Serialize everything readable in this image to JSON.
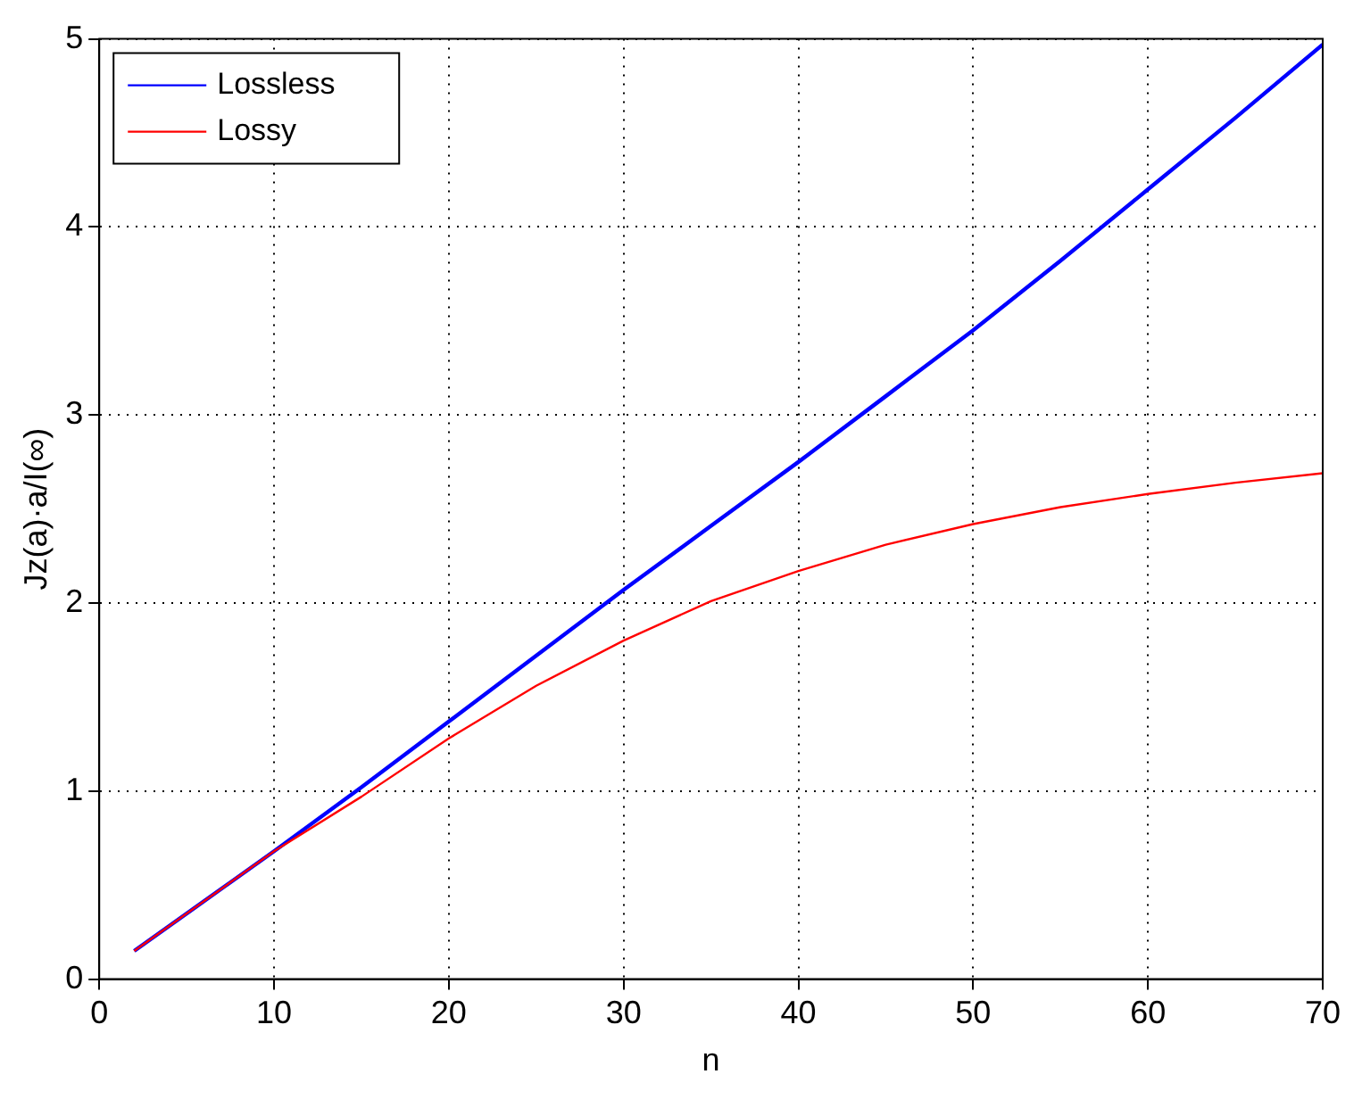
{
  "chart_data": {
    "type": "line",
    "xlabel": "n",
    "ylabel": "Jz(a)·a/I(∞)",
    "xlim": [
      0,
      70
    ],
    "xticks": [
      0,
      10,
      20,
      30,
      40,
      50,
      60,
      70
    ],
    "ylim": [
      0,
      5
    ],
    "yticks": [
      0,
      1,
      2,
      3,
      4,
      5
    ],
    "grid": true,
    "legend": "top left",
    "line_style": "solid",
    "marker": "none",
    "series": [
      {
        "name": "Lossless",
        "color": "#0000ff",
        "x": [
          2,
          10,
          15,
          20,
          25,
          30,
          35,
          40,
          45,
          50,
          55,
          60,
          65,
          70
        ],
        "values": [
          0.15,
          0.68,
          1.02,
          1.37,
          1.72,
          2.07,
          2.41,
          2.75,
          3.1,
          3.45,
          3.82,
          4.2,
          4.58,
          4.97
        ]
      },
      {
        "name": "Lossy",
        "color": "#ff0000",
        "x": [
          2,
          10,
          15,
          20,
          25,
          30,
          35,
          40,
          45,
          50,
          55,
          60,
          65,
          70
        ],
        "values": [
          0.15,
          0.68,
          0.97,
          1.28,
          1.56,
          1.8,
          2.01,
          2.17,
          2.31,
          2.42,
          2.51,
          2.58,
          2.64,
          2.69
        ]
      }
    ]
  }
}
